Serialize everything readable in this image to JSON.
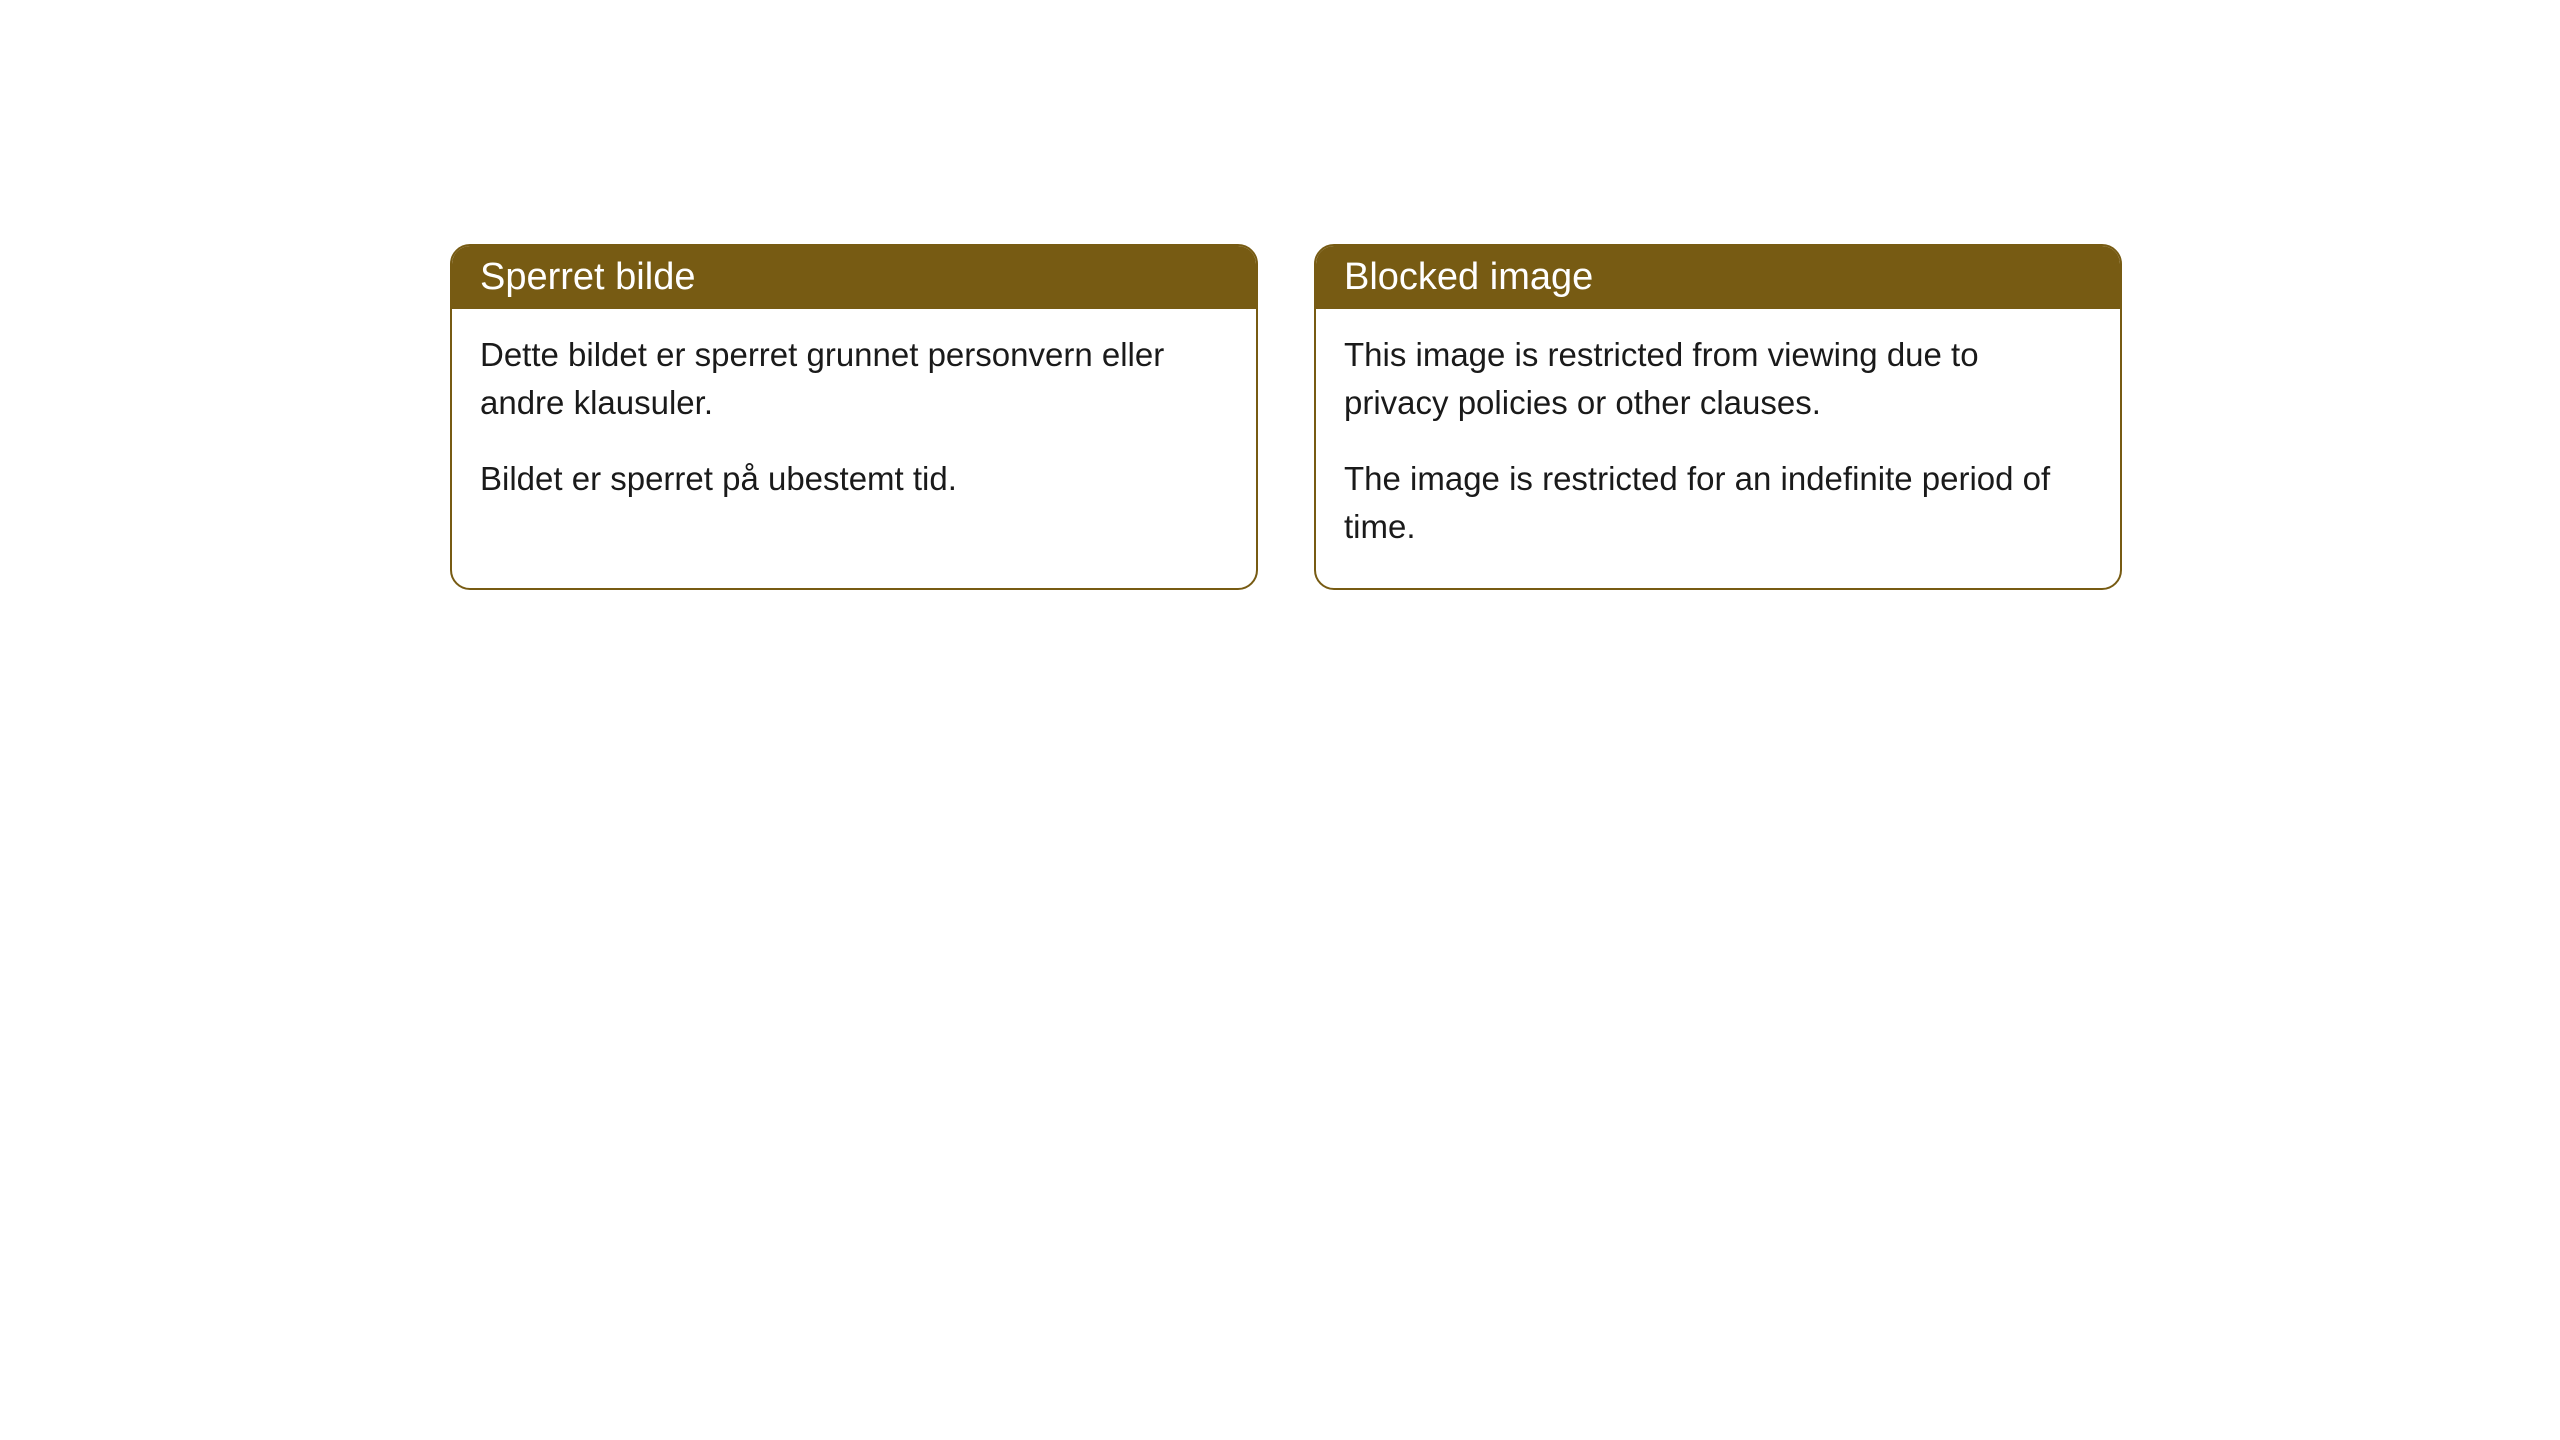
{
  "cards": [
    {
      "title": "Sperret bilde",
      "paragraph1": "Dette bildet er sperret grunnet personvern eller andre klausuler.",
      "paragraph2": "Bildet er sperret på ubestemt tid."
    },
    {
      "title": "Blocked image",
      "paragraph1": "This image is restricted from viewing due to privacy policies or other clauses.",
      "paragraph2": "The image is restricted for an indefinite period of time."
    }
  ],
  "style": {
    "header_bg_color": "#775b13",
    "header_text_color": "#ffffff",
    "border_color": "#775b13",
    "body_text_color": "#1a1a1a",
    "card_bg_color": "#ffffff",
    "page_bg_color": "#ffffff",
    "border_radius": 20,
    "header_fontsize": 38,
    "body_fontsize": 33
  }
}
